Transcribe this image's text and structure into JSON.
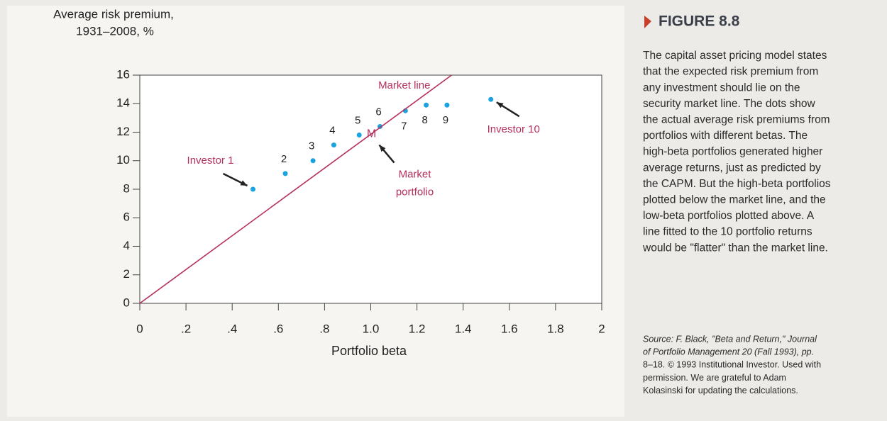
{
  "chart_data": {
    "type": "scatter",
    "ylabel": [
      "Average risk premium,",
      "1931–2008, %"
    ],
    "xlabel": "Portfolio beta",
    "xlim": [
      0,
      2
    ],
    "ylim": [
      0,
      16
    ],
    "xticks": [
      0,
      {
        "value": 0.2,
        "label": ".2"
      },
      {
        "value": 0.4,
        "label": ".4"
      },
      {
        "value": 0.6,
        "label": ".6"
      },
      {
        "value": 0.8,
        "label": ".8"
      },
      {
        "value": 1,
        "label": "1.0"
      },
      1.2,
      1.4,
      1.6,
      1.8,
      2
    ],
    "yticks": [
      0,
      2,
      4,
      6,
      8,
      10,
      12,
      14,
      16
    ],
    "series": [
      {
        "color": "#1aa3e0",
        "x": [
          0.49,
          0.63,
          0.75,
          0.84,
          0.95,
          1.04,
          1.15,
          1.24,
          1.33,
          1.52
        ],
        "values": [
          8.0,
          9.1,
          10.0,
          11.1,
          11.8,
          12.4,
          13.5,
          13.9,
          13.9,
          14.3
        ],
        "labels": [
          "Investor 1",
          "2",
          "3",
          "4",
          "5",
          "6",
          "7",
          "8",
          "9",
          "Investor 10"
        ]
      },
      {
        "type": "line",
        "name": "Market line",
        "color": "#b5305a",
        "x": [
          0,
          1.35
        ],
        "values": [
          0,
          16
        ]
      }
    ],
    "market_portfolio": {
      "label": "M",
      "note": [
        "Market",
        "portfolio"
      ],
      "x": 1.0,
      "value": 11.85
    }
  },
  "caption": {
    "heading": "FIGURE 8.8",
    "lines": [
      "The capital asset pricing model states",
      "that the expected risk premium from",
      "any investment should lie on the",
      "security market line. The dots show",
      "the actual average risk premiums from",
      "portfolios with different betas. The",
      "high-beta portfolios generated higher",
      "average returns, just as predicted by",
      "the CAPM. But the high-beta portfolios",
      "plotted below the market line, and the",
      "low-beta portfolios plotted above. A",
      "line fitted to the 10 portfolio returns",
      "would be \"flatter\" than the market line."
    ],
    "source": [
      "Source: F. Black, \"Beta and Return,\" Journal",
      "of Portfolio Management 20 (Fall 1993), pp.",
      "8–18. © 1993 Institutional Investor. Used with",
      "permission. We are grateful to Adam",
      "Kolasinski for updating the calculations."
    ]
  }
}
